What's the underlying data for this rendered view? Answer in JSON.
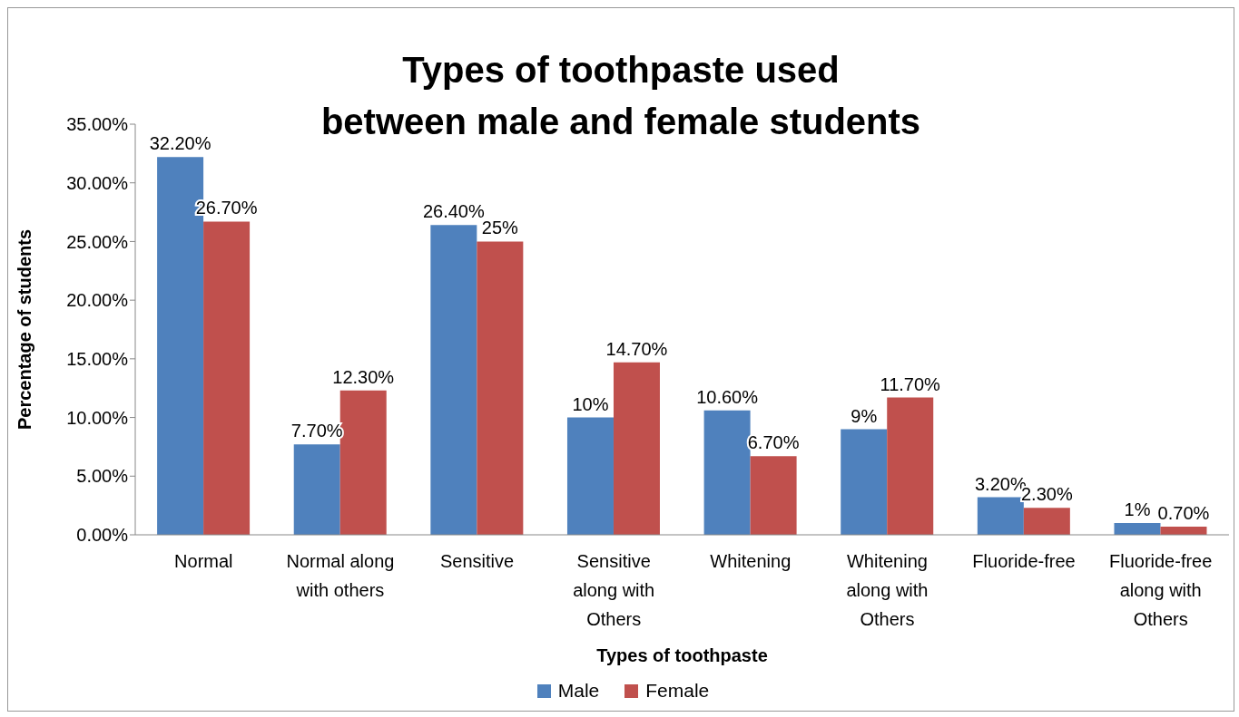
{
  "chart_data": {
    "type": "bar",
    "title": "Types of toothpaste used\nbetween male and female students",
    "xlabel": "Types of toothpaste",
    "ylabel": "Percentage of students",
    "categories": [
      "Normal",
      "Normal along with others",
      "Sensitive",
      "Sensitive along with Others",
      "Whitening",
      "Whitening along with Others",
      "Fluoride-free",
      "Fluoride-free along with Others"
    ],
    "series": [
      {
        "name": "Male",
        "color": "#4f81bd",
        "values": [
          32.2,
          7.7,
          26.4,
          10,
          10.6,
          9,
          3.2,
          1
        ],
        "value_labels": [
          "32.20%",
          "7.70%",
          "26.40%",
          "10%",
          "10.60%",
          "9%",
          "3.20%",
          "1%"
        ]
      },
      {
        "name": "Female",
        "color": "#c0504d",
        "values": [
          26.7,
          12.3,
          25,
          14.7,
          6.7,
          11.7,
          2.3,
          0.7
        ],
        "value_labels": [
          "26.70%",
          "12.30%",
          "25%",
          "14.70%",
          "6.70%",
          "11.70%",
          "2.30%",
          "0.70%"
        ]
      }
    ],
    "ylim": [
      0,
      35
    ],
    "yticks": [
      {
        "value": 0,
        "label": "0.00%"
      },
      {
        "value": 5,
        "label": "5.00%"
      },
      {
        "value": 10,
        "label": "10.00%"
      },
      {
        "value": 15,
        "label": "15.00%"
      },
      {
        "value": 20,
        "label": "20.00%"
      },
      {
        "value": 25,
        "label": "25.00%"
      },
      {
        "value": 30,
        "label": "30.00%"
      },
      {
        "value": 35,
        "label": "35.00%"
      }
    ],
    "legend": "bottom"
  }
}
